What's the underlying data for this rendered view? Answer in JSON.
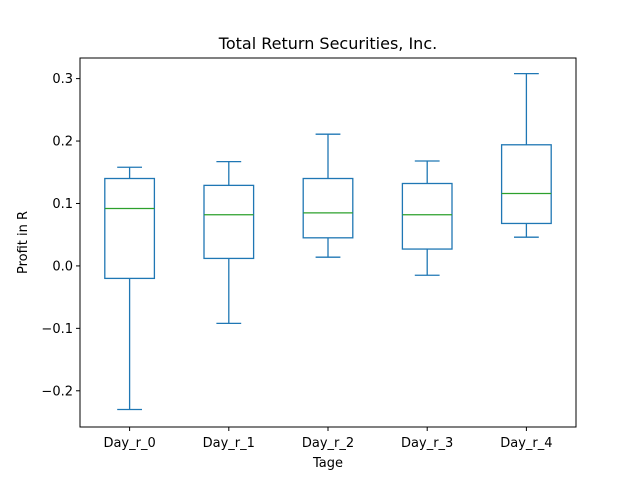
{
  "chart_data": {
    "type": "box",
    "title": "Total Return Securities, Inc.",
    "xlabel": "Tage",
    "ylabel": "Profit in R",
    "categories": [
      "Day_r_0",
      "Day_r_1",
      "Day_r_2",
      "Day_r_3",
      "Day_r_4"
    ],
    "boxes": [
      {
        "whisker_low": -0.23,
        "q1": -0.02,
        "median": 0.092,
        "q3": 0.14,
        "whisker_high": 0.158
      },
      {
        "whisker_low": -0.092,
        "q1": 0.012,
        "median": 0.082,
        "q3": 0.129,
        "whisker_high": 0.167
      },
      {
        "whisker_low": 0.014,
        "q1": 0.045,
        "median": 0.085,
        "q3": 0.14,
        "whisker_high": 0.211
      },
      {
        "whisker_low": -0.015,
        "q1": 0.027,
        "median": 0.082,
        "q3": 0.132,
        "whisker_high": 0.168
      },
      {
        "whisker_low": 0.046,
        "q1": 0.068,
        "median": 0.116,
        "q3": 0.194,
        "whisker_high": 0.308
      }
    ],
    "ylim": [
      -0.258,
      0.333
    ],
    "yticks": [
      -0.2,
      -0.1,
      0.0,
      0.1,
      0.2,
      0.3
    ],
    "ytick_labels": [
      "−0.2",
      "−0.1",
      "0.0",
      "0.1",
      "0.2",
      "0.3"
    ],
    "grid": false,
    "colors": {
      "box": "#1f77b4",
      "median": "#2ca02c",
      "axes": "#000000"
    }
  }
}
